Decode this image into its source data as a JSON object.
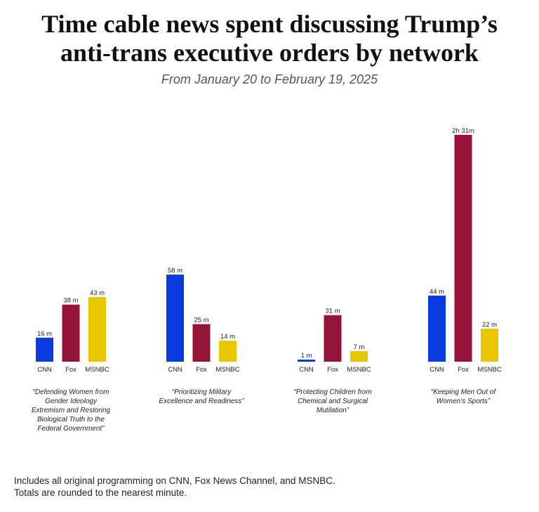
{
  "chart_data": {
    "type": "bar",
    "title": "Time cable news spent discussing Trump’s anti-trans executive orders by network",
    "subtitle": "From January 20 to February 19, 2025",
    "unit": "minutes",
    "networks": [
      "CNN",
      "Fox",
      "MSNBC"
    ],
    "colors": {
      "CNN": "#0a3be0",
      "Fox": "#94143a",
      "MSNBC": "#e8c600"
    },
    "groups": [
      {
        "label": "“Defending Women from Gender Ideology Extremism and Restoring Biological Truth to the Federal Government”",
        "label_lines": [
          "“Defending Women from",
          "Gender Ideology",
          "Extremism and Restoring",
          "Biological Truth to the",
          "Federal Government”"
        ],
        "values": [
          16,
          38,
          43
        ],
        "data_labels": [
          "16 m",
          "38 m",
          "43 m"
        ]
      },
      {
        "label": "“Prioritizing Military Excellence and Readiness”",
        "label_lines": [
          "“Prioritizing Military",
          "Excellence and Readiness”"
        ],
        "values": [
          58,
          25,
          14
        ],
        "data_labels": [
          "58 m",
          "25 m",
          "14 m"
        ]
      },
      {
        "label": "“Protecting Children from Chemical and Surgical Mutilation”",
        "label_lines": [
          "“Protecting Children from",
          "Chemical and Surgical",
          "Mutilation”"
        ],
        "values": [
          1,
          31,
          7
        ],
        "data_labels": [
          "1 m",
          "31 m",
          "7 m"
        ]
      },
      {
        "label": "“Keeping Men Out of Women’s Sports”",
        "label_lines": [
          "“Keeping Men Out of",
          "Women’s Sports”"
        ],
        "values": [
          44,
          151,
          22
        ],
        "data_labels": [
          "44 m",
          "2h 31m",
          "22 m"
        ]
      }
    ],
    "ylim": [
      0,
      151
    ],
    "grid": false
  },
  "footnote": [
    "Includes all original programming on CNN, Fox News Channel, and MSNBC.",
    "Totals are rounded to the nearest minute."
  ]
}
